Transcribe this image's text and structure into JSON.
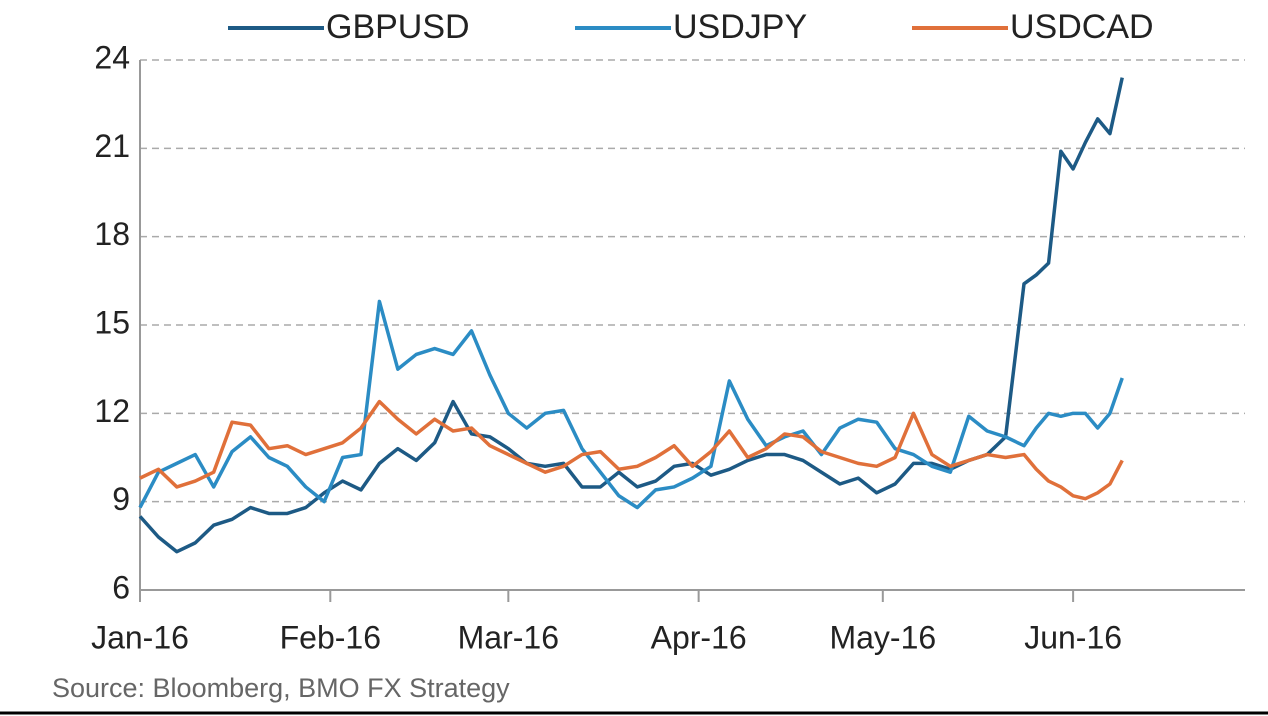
{
  "chart_data": {
    "type": "line",
    "source": "Source: Bloomberg, BMO FX Strategy",
    "x": [
      0,
      3,
      6,
      9,
      12,
      15,
      18,
      21,
      24,
      27,
      30,
      33,
      36,
      39,
      42,
      45,
      48,
      51,
      54,
      57,
      60,
      63,
      66,
      69,
      72,
      75,
      78,
      81,
      84,
      87,
      90,
      93,
      96,
      99,
      102,
      105,
      108,
      111,
      114,
      117,
      120,
      123,
      126,
      129,
      132,
      135,
      138,
      141,
      144,
      146,
      148,
      150,
      152,
      154,
      156,
      158,
      160
    ],
    "series": [
      {
        "name": "GBPUSD",
        "color": "#1d5a85",
        "values": [
          8.5,
          7.8,
          7.3,
          7.6,
          8.2,
          8.4,
          8.8,
          8.6,
          8.6,
          8.8,
          9.3,
          9.7,
          9.4,
          10.3,
          10.8,
          10.4,
          11.0,
          12.4,
          11.3,
          11.2,
          10.8,
          10.3,
          10.2,
          10.3,
          9.5,
          9.5,
          10.0,
          9.5,
          9.7,
          10.2,
          10.3,
          9.9,
          10.1,
          10.4,
          10.6,
          10.6,
          10.4,
          10.0,
          9.6,
          9.8,
          9.3,
          9.6,
          10.3,
          10.3,
          10.1,
          10.4,
          10.6,
          11.2,
          16.4,
          16.7,
          17.1,
          20.9,
          20.3,
          21.2,
          22.0,
          21.5,
          23.4
        ]
      },
      {
        "name": "USDJPY",
        "color": "#2b8cc4",
        "values": [
          8.8,
          10.0,
          10.3,
          10.6,
          9.5,
          10.7,
          11.2,
          10.5,
          10.2,
          9.5,
          9.0,
          10.5,
          10.6,
          15.8,
          13.5,
          14.0,
          14.2,
          14.0,
          14.8,
          13.3,
          12.0,
          11.5,
          12.0,
          12.1,
          10.8,
          10.0,
          9.2,
          8.8,
          9.4,
          9.5,
          9.8,
          10.2,
          13.1,
          11.8,
          10.9,
          11.2,
          11.4,
          10.6,
          11.5,
          11.8,
          11.7,
          10.8,
          10.6,
          10.2,
          10.0,
          11.9,
          11.4,
          11.2,
          10.9,
          11.5,
          12.0,
          11.9,
          12.0,
          12.0,
          11.5,
          12.0,
          13.2
        ]
      },
      {
        "name": "USDCAD",
        "color": "#e0703a",
        "values": [
          9.8,
          10.1,
          9.5,
          9.7,
          10.0,
          11.7,
          11.6,
          10.8,
          10.9,
          10.6,
          10.8,
          11.0,
          11.5,
          12.4,
          11.8,
          11.3,
          11.8,
          11.4,
          11.5,
          10.9,
          10.6,
          10.3,
          10.0,
          10.2,
          10.6,
          10.7,
          10.1,
          10.2,
          10.5,
          10.9,
          10.2,
          10.7,
          11.4,
          10.5,
          10.8,
          11.3,
          11.2,
          10.7,
          10.5,
          10.3,
          10.2,
          10.5,
          12.0,
          10.6,
          10.2,
          10.4,
          10.6,
          10.5,
          10.6,
          10.1,
          9.7,
          9.5,
          9.2,
          9.1,
          9.3,
          9.6,
          10.4
        ]
      }
    ],
    "xlim": [
      0,
      180
    ],
    "xticks": [
      {
        "value": 0,
        "label": "Jan-16"
      },
      {
        "value": 31,
        "label": "Feb-16"
      },
      {
        "value": 60,
        "label": "Mar-16"
      },
      {
        "value": 91,
        "label": "Apr-16"
      },
      {
        "value": 121,
        "label": "May-16"
      },
      {
        "value": 152,
        "label": "Jun-16"
      }
    ],
    "ylim": [
      6,
      24
    ],
    "yticks": [
      6,
      9,
      12,
      15,
      18,
      21,
      24
    ],
    "grid": true,
    "legend": "top"
  }
}
